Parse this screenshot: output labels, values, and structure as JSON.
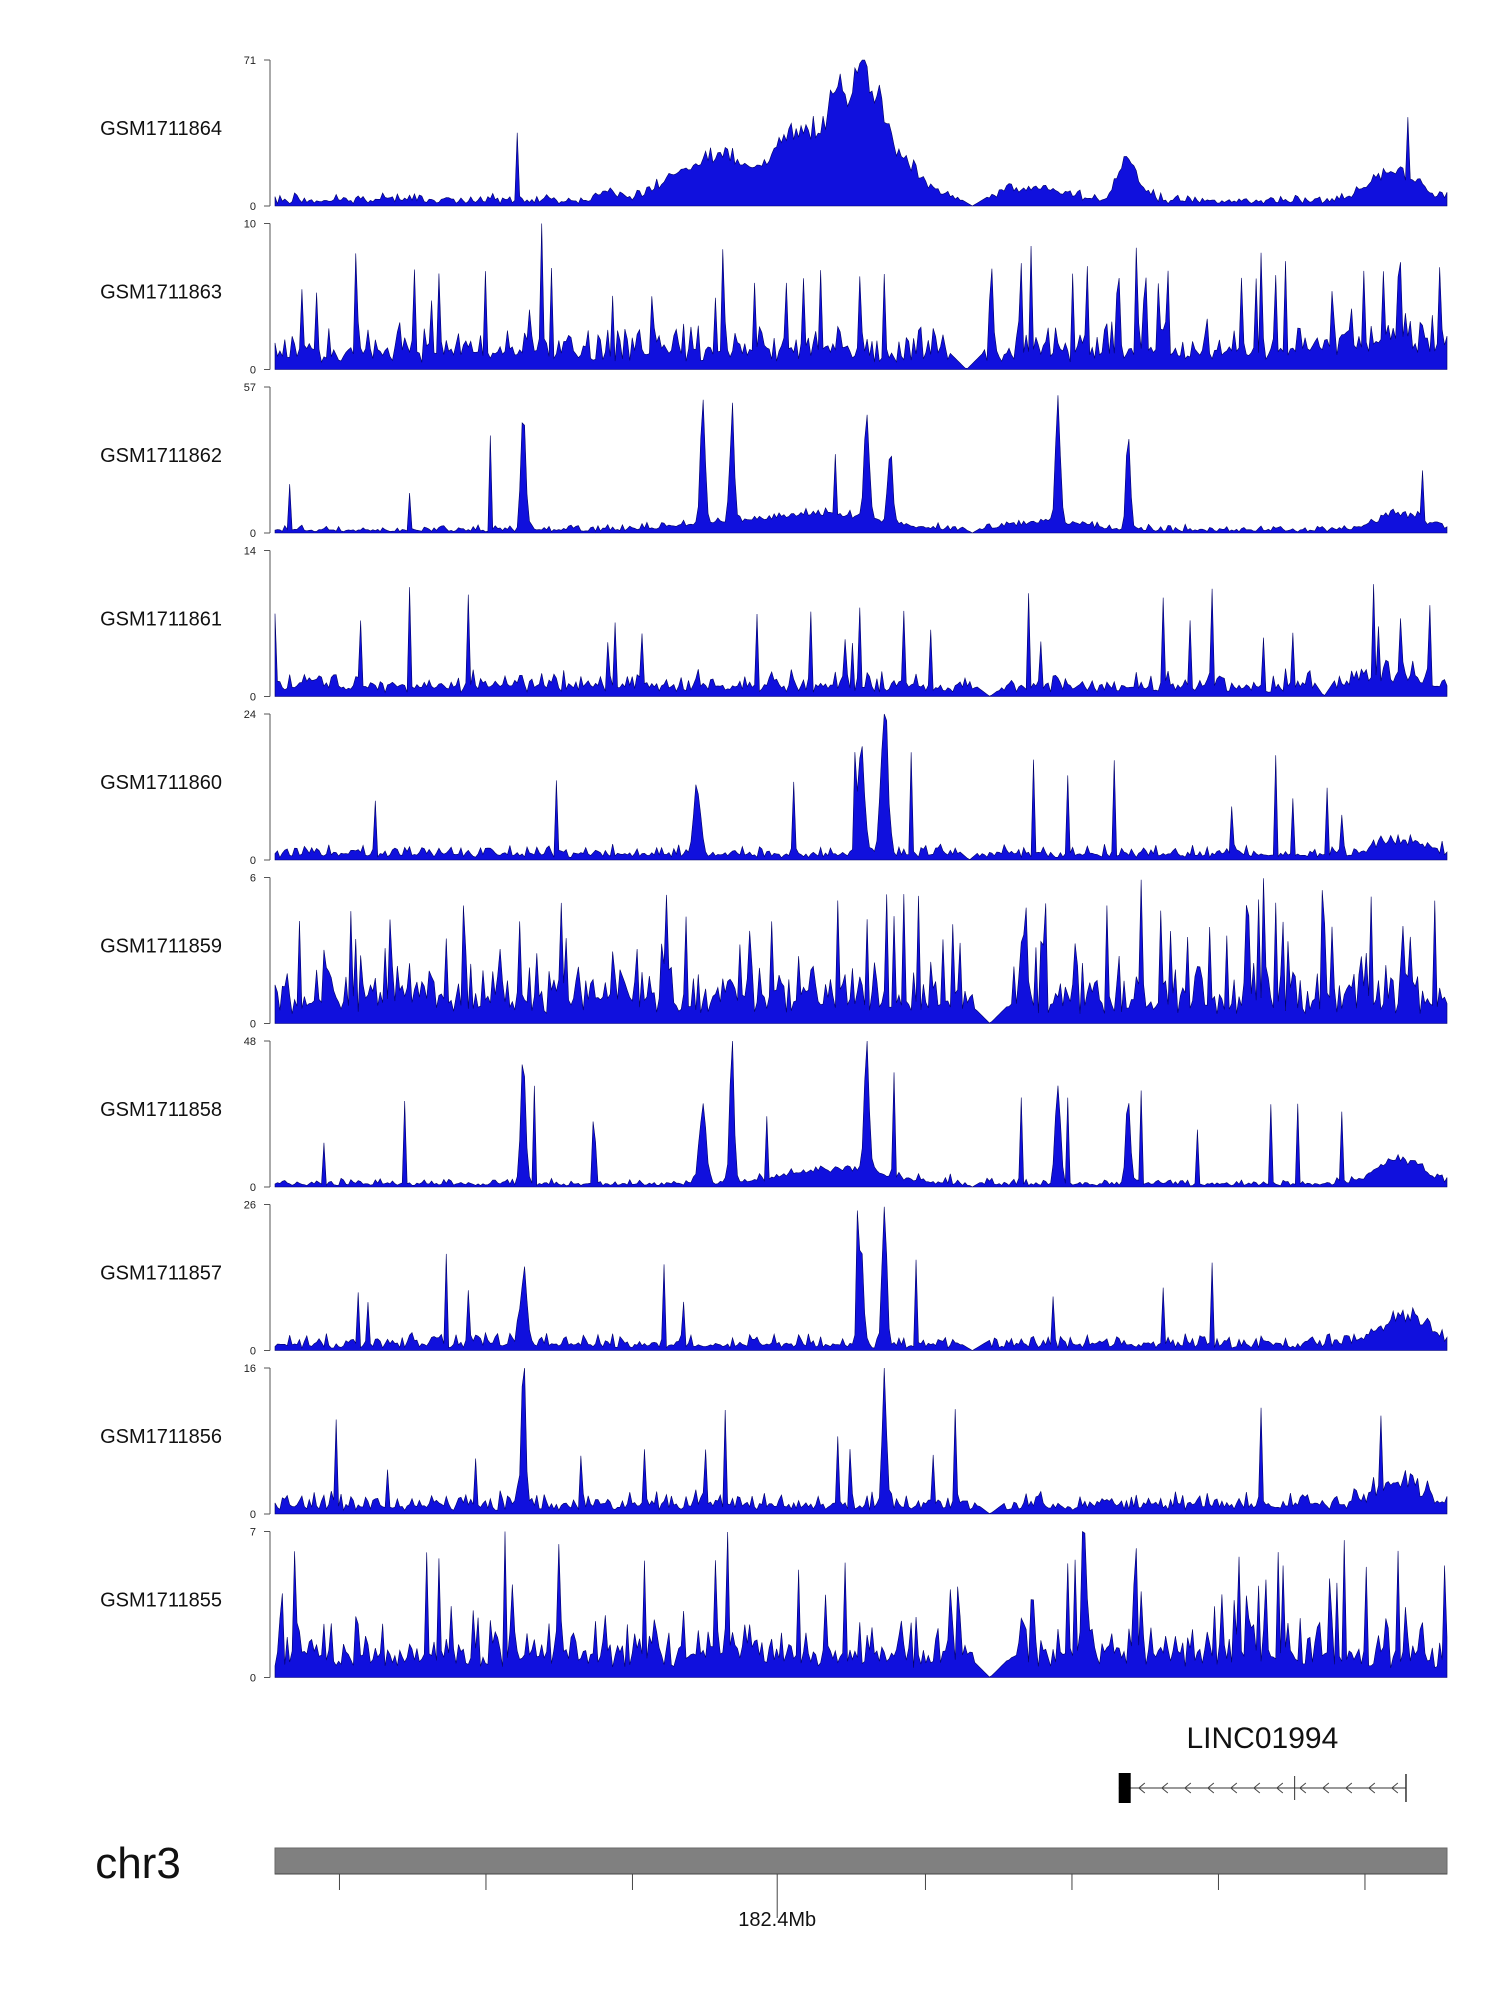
{
  "chart_data": {
    "type": "area",
    "colors": {
      "signal": "#1010dd",
      "outline": "#000066",
      "ideogram": "#808080",
      "axis": "#555555"
    },
    "tracks": [
      {
        "name": "GSM1711864",
        "ymax": "71",
        "ymin": "0",
        "peak": 71,
        "base": 0.035,
        "noise": 0.05,
        "spike_rate": 0.01,
        "gap": [
          0.57,
          0.62
        ],
        "bumps": [
          [
            0.105,
            0.01,
            0.02
          ],
          [
            0.285,
            0.008,
            0.08
          ],
          [
            0.365,
            0.025,
            0.18
          ],
          [
            0.435,
            0.012,
            0.25
          ],
          [
            0.39,
            0.02,
            0.22
          ],
          [
            0.49,
            0.035,
            0.75
          ],
          [
            0.505,
            0.012,
            0.22
          ],
          [
            0.65,
            0.025,
            0.1
          ],
          [
            0.727,
            0.008,
            0.32
          ],
          [
            0.745,
            0.004,
            0.06
          ],
          [
            0.955,
            0.02,
            0.22
          ],
          [
            0.34,
            0.015,
            0.08
          ]
        ]
      },
      {
        "name": "GSM1711863",
        "ymax": "10",
        "ymin": "0",
        "peak": 10,
        "base": 0.12,
        "noise": 0.22,
        "spike_rate": 0.1,
        "gap": [
          0.575,
          0.605
        ],
        "bumps": [
          [
            0.94,
            0.04,
            0.08
          ]
        ]
      },
      {
        "name": "GSM1711862",
        "ymax": "57",
        "ymin": "0",
        "peak": 57,
        "base": 0.02,
        "noise": 0.04,
        "spike_rate": 0.02,
        "gap": [
          0.57,
          0.62
        ],
        "bumps": [
          [
            0.212,
            0.002,
            0.96
          ],
          [
            0.365,
            0.002,
            0.82
          ],
          [
            0.39,
            0.002,
            0.76
          ],
          [
            0.505,
            0.002,
            0.84
          ],
          [
            0.525,
            0.002,
            0.56
          ],
          [
            0.668,
            0.002,
            0.85
          ],
          [
            0.728,
            0.002,
            0.58
          ],
          [
            0.48,
            0.04,
            0.1
          ],
          [
            0.96,
            0.02,
            0.12
          ],
          [
            0.4,
            0.05,
            0.06
          ],
          [
            0.66,
            0.03,
            0.06
          ]
        ]
      },
      {
        "name": "GSM1711861",
        "ymax": "14",
        "ymin": "0",
        "peak": 14,
        "base": 0.07,
        "noise": 0.12,
        "spike_rate": 0.06,
        "gap": [
          0.59,
          0.63
        ],
        "gap2": [
          0.885,
          0.905
        ],
        "bumps": [
          [
            0.95,
            0.03,
            0.08
          ]
        ]
      },
      {
        "name": "GSM1711860",
        "ymax": "24",
        "ymin": "0",
        "peak": 24,
        "base": 0.04,
        "noise": 0.07,
        "spike_rate": 0.03,
        "gap": [
          0.575,
          0.61
        ],
        "bumps": [
          [
            0.52,
            0.003,
            0.98
          ],
          [
            0.5,
            0.003,
            0.72
          ],
          [
            0.36,
            0.003,
            0.52
          ],
          [
            0.96,
            0.02,
            0.1
          ]
        ]
      },
      {
        "name": "GSM1711859",
        "ymax": "6",
        "ymin": "0",
        "peak": 6,
        "base": 0.16,
        "noise": 0.28,
        "spike_rate": 0.12,
        "gap": [
          0.595,
          0.625
        ],
        "bumps": []
      },
      {
        "name": "GSM1711858",
        "ymax": "48",
        "ymin": "0",
        "peak": 48,
        "base": 0.02,
        "noise": 0.04,
        "spike_rate": 0.02,
        "gap": [
          0.57,
          0.62
        ],
        "bumps": [
          [
            0.212,
            0.002,
            0.98
          ],
          [
            0.39,
            0.002,
            0.9
          ],
          [
            0.505,
            0.002,
            0.94
          ],
          [
            0.668,
            0.002,
            0.84
          ],
          [
            0.728,
            0.002,
            0.57
          ],
          [
            0.365,
            0.003,
            0.55
          ],
          [
            0.48,
            0.04,
            0.12
          ],
          [
            0.96,
            0.02,
            0.18
          ]
        ]
      },
      {
        "name": "GSM1711857",
        "ymax": "26",
        "ymin": "0",
        "peak": 26,
        "base": 0.04,
        "noise": 0.08,
        "spike_rate": 0.03,
        "gap": [
          0.57,
          0.62
        ],
        "bumps": [
          [
            0.212,
            0.003,
            0.52
          ],
          [
            0.52,
            0.002,
            0.98
          ],
          [
            0.5,
            0.002,
            0.7
          ],
          [
            0.965,
            0.02,
            0.2
          ]
        ]
      },
      {
        "name": "GSM1711856",
        "ymax": "16",
        "ymin": "0",
        "peak": 16,
        "base": 0.06,
        "noise": 0.1,
        "spike_rate": 0.04,
        "gap": [
          0.59,
          0.63
        ],
        "bumps": [
          [
            0.212,
            0.002,
            0.98
          ],
          [
            0.52,
            0.002,
            0.92
          ],
          [
            0.96,
            0.02,
            0.16
          ]
        ]
      },
      {
        "name": "GSM1711855",
        "ymax": "7",
        "ymin": "0",
        "peak": 7,
        "base": 0.16,
        "noise": 0.26,
        "spike_rate": 0.1,
        "gap": [
          0.595,
          0.625
        ],
        "bumps": [
          [
            0.69,
            0.002,
            0.98
          ]
        ]
      }
    ],
    "gene": {
      "name": "LINC01994",
      "strand": "-",
      "start_frac": 0.72,
      "end_frac": 0.965,
      "exon_frac": 0.725,
      "junction_frac": 0.87
    },
    "chromosome": {
      "name": "chr3",
      "position_label": "182.4Mb",
      "position_frac": 0.4285,
      "tick_fracs": [
        0.055,
        0.18,
        0.305,
        0.4285,
        0.555,
        0.68,
        0.805,
        0.93
      ]
    }
  }
}
